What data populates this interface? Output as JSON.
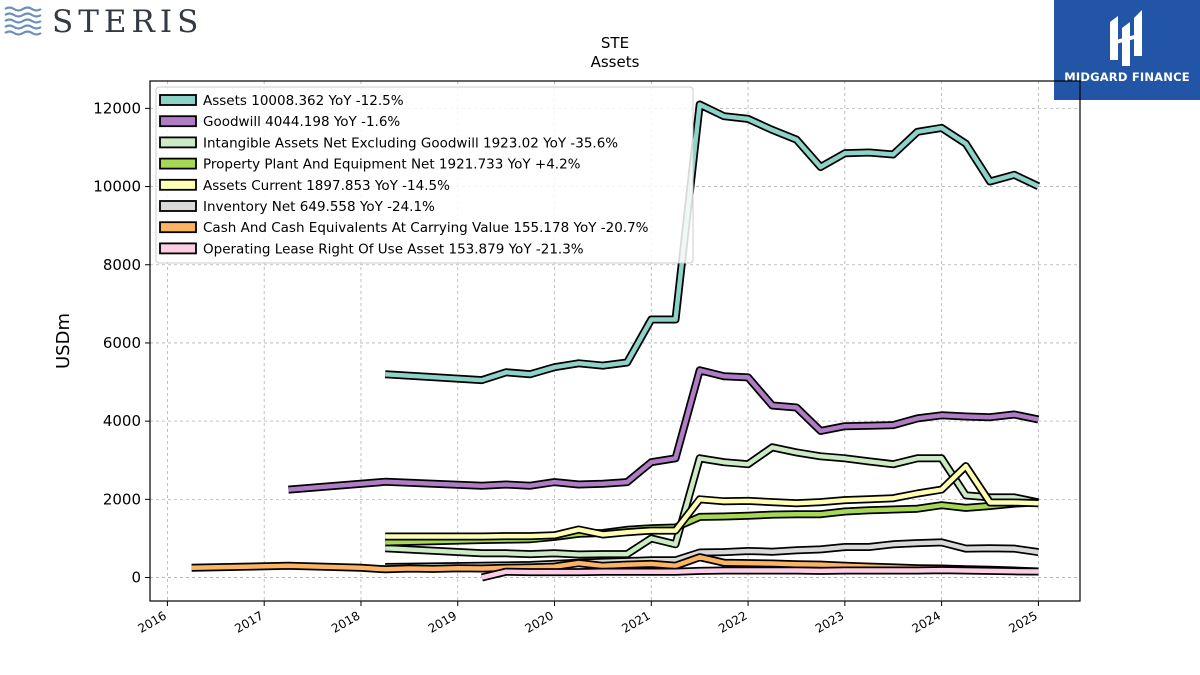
{
  "brand_left": "STERIS",
  "brand_right": "MIDGARD FINANCE",
  "chart_data": {
    "type": "line",
    "title": "STE",
    "subtitle": "Assets",
    "ylabel": "USDm",
    "xlabel": "",
    "ylim": [
      -600,
      12700
    ],
    "xlim": [
      2015.82,
      2025.43
    ],
    "yticks": [
      0,
      2000,
      4000,
      6000,
      8000,
      10000,
      12000
    ],
    "yticklabels": [
      "0",
      "2000",
      "4000",
      "6000",
      "8000",
      "10000",
      "12000"
    ],
    "xticks": [
      2016,
      2017,
      2018,
      2019,
      2020,
      2021,
      2022,
      2023,
      2024,
      2025
    ],
    "xticklabels": [
      "2016",
      "2017",
      "2018",
      "2019",
      "2020",
      "2021",
      "2022",
      "2023",
      "2024",
      "2025"
    ],
    "grid": true,
    "legend_position": "top-left",
    "series": [
      {
        "name": "Assets",
        "color": "#8dd3c7",
        "legend": "Assets  10008.362 YoY -12.5%",
        "points": [
          [
            2018.25,
            5200
          ],
          [
            2019.25,
            5050
          ],
          [
            2019.5,
            5250
          ],
          [
            2019.75,
            5200
          ],
          [
            2020.0,
            5380
          ],
          [
            2020.25,
            5480
          ],
          [
            2020.5,
            5420
          ],
          [
            2020.75,
            5500
          ],
          [
            2021.0,
            6600
          ],
          [
            2021.25,
            6600
          ],
          [
            2021.5,
            12100
          ],
          [
            2021.75,
            11800
          ],
          [
            2022.0,
            11730
          ],
          [
            2022.25,
            11450
          ],
          [
            2022.5,
            11200
          ],
          [
            2022.75,
            10500
          ],
          [
            2023.0,
            10850
          ],
          [
            2023.25,
            10870
          ],
          [
            2023.5,
            10820
          ],
          [
            2023.75,
            11400
          ],
          [
            2024.0,
            11500
          ],
          [
            2024.25,
            11100
          ],
          [
            2024.5,
            10130
          ],
          [
            2024.75,
            10300
          ],
          [
            2025.0,
            10008
          ]
        ]
      },
      {
        "name": "Goodwill",
        "color": "#b07cc6",
        "legend": "Goodwill  4044.198 YoY -1.6%",
        "points": [
          [
            2017.25,
            2250
          ],
          [
            2018.25,
            2450
          ],
          [
            2019.25,
            2350
          ],
          [
            2019.5,
            2380
          ],
          [
            2019.75,
            2350
          ],
          [
            2020.0,
            2440
          ],
          [
            2020.25,
            2380
          ],
          [
            2020.5,
            2400
          ],
          [
            2020.75,
            2440
          ],
          [
            2021.0,
            2950
          ],
          [
            2021.25,
            3050
          ],
          [
            2021.5,
            5300
          ],
          [
            2021.75,
            5150
          ],
          [
            2022.0,
            5120
          ],
          [
            2022.25,
            4400
          ],
          [
            2022.5,
            4350
          ],
          [
            2022.75,
            3750
          ],
          [
            2023.0,
            3870
          ],
          [
            2023.25,
            3880
          ],
          [
            2023.5,
            3900
          ],
          [
            2023.75,
            4070
          ],
          [
            2024.0,
            4150
          ],
          [
            2024.25,
            4120
          ],
          [
            2024.5,
            4100
          ],
          [
            2024.75,
            4170
          ],
          [
            2025.0,
            4044
          ]
        ]
      },
      {
        "name": "Intangible Assets Net Excluding Goodwill",
        "color": "#ccebc5",
        "legend": "Intangible Assets Net Excluding Goodwill  1923.02 YoY -35.6%",
        "points": [
          [
            2018.25,
            750
          ],
          [
            2019.25,
            620
          ],
          [
            2019.5,
            620
          ],
          [
            2019.75,
            600
          ],
          [
            2020.0,
            620
          ],
          [
            2020.25,
            590
          ],
          [
            2020.5,
            600
          ],
          [
            2020.75,
            600
          ],
          [
            2021.0,
            1000
          ],
          [
            2021.25,
            850
          ],
          [
            2021.5,
            3050
          ],
          [
            2021.75,
            2950
          ],
          [
            2022.0,
            2900
          ],
          [
            2022.25,
            3330
          ],
          [
            2022.5,
            3200
          ],
          [
            2022.75,
            3100
          ],
          [
            2023.0,
            3050
          ],
          [
            2023.25,
            2970
          ],
          [
            2023.5,
            2900
          ],
          [
            2023.75,
            3050
          ],
          [
            2024.0,
            3050
          ],
          [
            2024.25,
            2100
          ],
          [
            2024.5,
            2050
          ],
          [
            2024.75,
            2050
          ],
          [
            2025.0,
            1923
          ]
        ]
      },
      {
        "name": "Property Plant And Equipment Net",
        "color": "#a6d854",
        "legend": "Property Plant And Equipment Net  1921.733 YoY +4.2%",
        "points": [
          [
            2018.25,
            900
          ],
          [
            2019.25,
            960
          ],
          [
            2019.5,
            970
          ],
          [
            2019.75,
            980
          ],
          [
            2020.0,
            1040
          ],
          [
            2020.25,
            1120
          ],
          [
            2020.5,
            1140
          ],
          [
            2020.75,
            1220
          ],
          [
            2021.0,
            1260
          ],
          [
            2021.25,
            1280
          ],
          [
            2021.5,
            1550
          ],
          [
            2021.75,
            1560
          ],
          [
            2022.0,
            1580
          ],
          [
            2022.25,
            1610
          ],
          [
            2022.5,
            1620
          ],
          [
            2022.75,
            1620
          ],
          [
            2023.0,
            1690
          ],
          [
            2023.25,
            1720
          ],
          [
            2023.5,
            1740
          ],
          [
            2023.75,
            1760
          ],
          [
            2024.0,
            1850
          ],
          [
            2024.25,
            1780
          ],
          [
            2024.5,
            1830
          ],
          [
            2024.75,
            1890
          ],
          [
            2025.0,
            1922
          ]
        ]
      },
      {
        "name": "Assets Current",
        "color": "#ffffb3",
        "legend": "Assets Current  1897.853 YoY -14.5%",
        "points": [
          [
            2018.25,
            1050
          ],
          [
            2019.25,
            1050
          ],
          [
            2019.5,
            1060
          ],
          [
            2019.75,
            1060
          ],
          [
            2020.0,
            1080
          ],
          [
            2020.25,
            1230
          ],
          [
            2020.5,
            1100
          ],
          [
            2020.75,
            1160
          ],
          [
            2021.0,
            1200
          ],
          [
            2021.25,
            1200
          ],
          [
            2021.5,
            2000
          ],
          [
            2021.75,
            1950
          ],
          [
            2022.0,
            1960
          ],
          [
            2022.25,
            1930
          ],
          [
            2022.5,
            1900
          ],
          [
            2022.75,
            1930
          ],
          [
            2023.0,
            1980
          ],
          [
            2023.25,
            2000
          ],
          [
            2023.5,
            2030
          ],
          [
            2023.75,
            2150
          ],
          [
            2024.0,
            2250
          ],
          [
            2024.25,
            2850
          ],
          [
            2024.5,
            1920
          ],
          [
            2024.75,
            1920
          ],
          [
            2025.0,
            1898
          ]
        ]
      },
      {
        "name": "Inventory Net",
        "color": "#d9d9d9",
        "legend": "Inventory Net  649.558 YoY -24.1%",
        "points": [
          [
            2018.25,
            270
          ],
          [
            2019.25,
            300
          ],
          [
            2019.5,
            310
          ],
          [
            2019.75,
            320
          ],
          [
            2020.0,
            350
          ],
          [
            2020.25,
            380
          ],
          [
            2020.5,
            400
          ],
          [
            2020.75,
            420
          ],
          [
            2021.0,
            440
          ],
          [
            2021.25,
            440
          ],
          [
            2021.5,
            640
          ],
          [
            2021.75,
            650
          ],
          [
            2022.0,
            680
          ],
          [
            2022.25,
            660
          ],
          [
            2022.5,
            700
          ],
          [
            2022.75,
            720
          ],
          [
            2023.0,
            780
          ],
          [
            2023.25,
            780
          ],
          [
            2023.5,
            850
          ],
          [
            2023.75,
            880
          ],
          [
            2024.0,
            900
          ],
          [
            2024.25,
            740
          ],
          [
            2024.5,
            750
          ],
          [
            2024.75,
            740
          ],
          [
            2025.0,
            650
          ]
        ]
      },
      {
        "name": "Cash And Cash Equivalents At Carrying Value",
        "color": "#fdb462",
        "legend": "Cash And Cash Equivalents At Carrying Value  155.178 YoY -20.7%",
        "points": [
          [
            2016.25,
            250
          ],
          [
            2017.25,
            300
          ],
          [
            2018.0,
            250
          ],
          [
            2018.25,
            210
          ],
          [
            2018.5,
            230
          ],
          [
            2018.75,
            220
          ],
          [
            2019.0,
            240
          ],
          [
            2019.25,
            230
          ],
          [
            2019.5,
            250
          ],
          [
            2019.75,
            260
          ],
          [
            2020.0,
            280
          ],
          [
            2020.25,
            370
          ],
          [
            2020.5,
            300
          ],
          [
            2020.75,
            330
          ],
          [
            2021.0,
            350
          ],
          [
            2021.25,
            300
          ],
          [
            2021.5,
            520
          ],
          [
            2021.75,
            380
          ],
          [
            2022.0,
            370
          ],
          [
            2022.25,
            360
          ],
          [
            2022.5,
            340
          ],
          [
            2022.75,
            330
          ],
          [
            2023.0,
            300
          ],
          [
            2023.25,
            280
          ],
          [
            2023.5,
            260
          ],
          [
            2023.75,
            240
          ],
          [
            2024.0,
            230
          ],
          [
            2024.25,
            210
          ],
          [
            2024.5,
            200
          ],
          [
            2024.75,
            180
          ],
          [
            2025.0,
            155
          ]
        ]
      },
      {
        "name": "Operating Lease Right Of Use Asset",
        "color": "#fccde5",
        "legend": "Operating Lease Right Of Use Asset  153.879 YoY -21.3%",
        "points": [
          [
            2019.25,
            0
          ],
          [
            2019.5,
            150
          ],
          [
            2019.75,
            140
          ],
          [
            2020.0,
            140
          ],
          [
            2020.25,
            140
          ],
          [
            2020.5,
            150
          ],
          [
            2020.75,
            150
          ],
          [
            2021.0,
            150
          ],
          [
            2021.25,
            150
          ],
          [
            2021.5,
            170
          ],
          [
            2021.75,
            180
          ],
          [
            2022.0,
            180
          ],
          [
            2022.25,
            180
          ],
          [
            2022.5,
            180
          ],
          [
            2022.75,
            170
          ],
          [
            2023.0,
            180
          ],
          [
            2023.25,
            180
          ],
          [
            2023.5,
            180
          ],
          [
            2023.75,
            180
          ],
          [
            2024.0,
            190
          ],
          [
            2024.25,
            180
          ],
          [
            2024.5,
            170
          ],
          [
            2024.75,
            160
          ],
          [
            2025.0,
            154
          ]
        ]
      }
    ]
  }
}
